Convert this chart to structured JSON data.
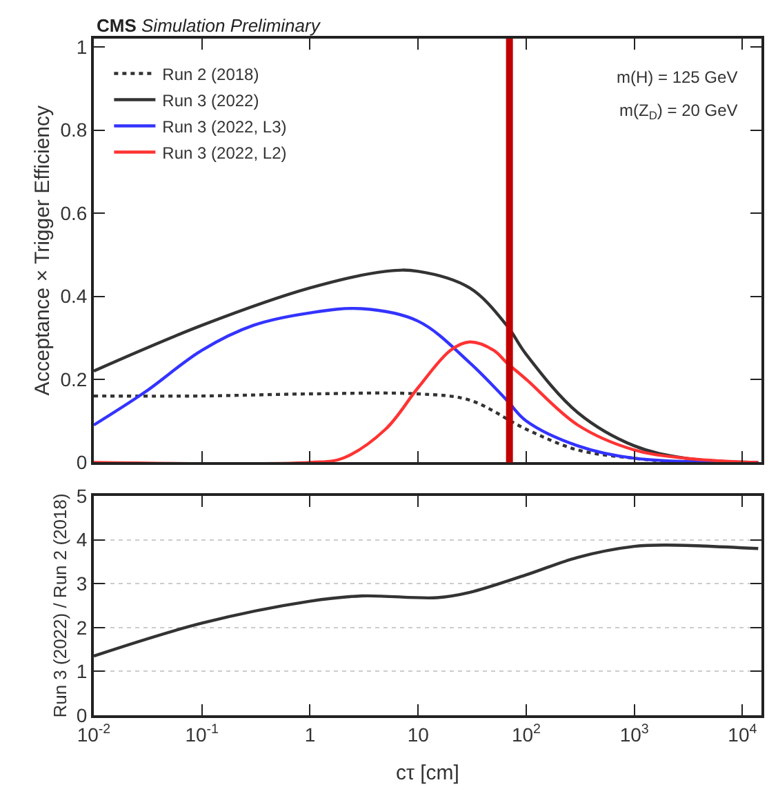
{
  "chart_data": [
    {
      "type": "line",
      "title": "CMS Simulation Preliminary",
      "ylabel": "Acceptance × Trigger Efficiency",
      "log": "x",
      "legend": "top left",
      "tick_labels": "y",
      "grid": false,
      "xlim": [
        0.01,
        15000
      ],
      "xticks": [
        {
          "value": 0.01,
          "label": null
        },
        {
          "value": 0.1,
          "label": null
        },
        {
          "value": 1,
          "label": null
        },
        {
          "value": 10,
          "label": null
        },
        {
          "value": 100,
          "label": null
        },
        {
          "value": 1000,
          "label": null
        },
        {
          "value": 10000,
          "label": null
        }
      ],
      "ylim": [
        0,
        1.02
      ],
      "yticks": [
        0,
        0.2,
        0.4,
        0.6,
        0.8,
        1
      ],
      "annotations": [
        "m(H) = 125 GeV",
        "m(Z$_{D}$) = 20 GeV"
      ],
      "ref_lines": [
        {
          "axis": "x",
          "value": 70,
          "label": null,
          "color": "#c00000"
        }
      ],
      "series": [
        {
          "name": "Run 2 (2018)",
          "color": "#333333",
          "line_style": "dotted",
          "x": [
            0.01,
            0.1,
            1,
            10,
            30,
            100,
            300,
            1000,
            3000,
            14000
          ],
          "values": [
            0.16,
            0.16,
            0.165,
            0.165,
            0.15,
            0.08,
            0.03,
            0.01,
            0.0,
            0.0
          ]
        },
        {
          "name": "Run 3 (2022)",
          "color": "#333333",
          "line_style": "solid",
          "x": [
            0.01,
            0.1,
            1,
            5,
            10,
            30,
            66,
            100,
            300,
            1000,
            3000,
            14000
          ],
          "values": [
            0.22,
            0.33,
            0.42,
            0.46,
            0.46,
            0.42,
            0.33,
            0.26,
            0.12,
            0.04,
            0.01,
            0.0
          ]
        },
        {
          "name": "Run 3 (2022, L3)",
          "color": "#3333ff",
          "line_style": "solid",
          "x": [
            0.01,
            0.03,
            0.1,
            0.3,
            1,
            3,
            10,
            30,
            66,
            100,
            300,
            1000,
            14000
          ],
          "values": [
            0.09,
            0.17,
            0.27,
            0.33,
            0.36,
            0.37,
            0.34,
            0.24,
            0.15,
            0.1,
            0.04,
            0.01,
            0.0
          ]
        },
        {
          "name": "Run 3 (2022, L2)",
          "color": "#ff3333",
          "line_style": "solid",
          "x": [
            0.01,
            1,
            2,
            5,
            10,
            20,
            30,
            50,
            66,
            100,
            300,
            1000,
            3000,
            14000
          ],
          "values": [
            0.0,
            0.0,
            0.01,
            0.08,
            0.18,
            0.27,
            0.29,
            0.27,
            0.24,
            0.2,
            0.09,
            0.03,
            0.01,
            0.0
          ]
        }
      ]
    },
    {
      "type": "line",
      "ylabel": "Run 3 (2022) / Run 2 (2018)",
      "xlabel": "cτ [cm]",
      "log": "x",
      "legend": false,
      "grid": "y",
      "xlim": [
        0.01,
        15000
      ],
      "xticks": [
        {
          "value": 0.01,
          "label": "10$^{-2}$"
        },
        {
          "value": 0.1,
          "label": "10$^{-1}$"
        },
        1,
        10,
        {
          "value": 100,
          "label": "10$^{2}$"
        },
        {
          "value": 1000,
          "label": "10$^{3}$"
        },
        {
          "value": 10000,
          "label": "10$^{4}$"
        }
      ],
      "ylim": [
        0,
        5
      ],
      "yticks": [
        0,
        1,
        2,
        3,
        4,
        5
      ],
      "series": [
        {
          "color": "#333333",
          "line_style": "solid",
          "x": [
            0.01,
            0.1,
            1,
            3,
            15,
            30,
            100,
            300,
            1000,
            2000,
            14000
          ],
          "values": [
            1.35,
            2.1,
            2.6,
            2.72,
            2.68,
            2.8,
            3.2,
            3.6,
            3.85,
            3.88,
            3.8
          ]
        }
      ]
    }
  ]
}
